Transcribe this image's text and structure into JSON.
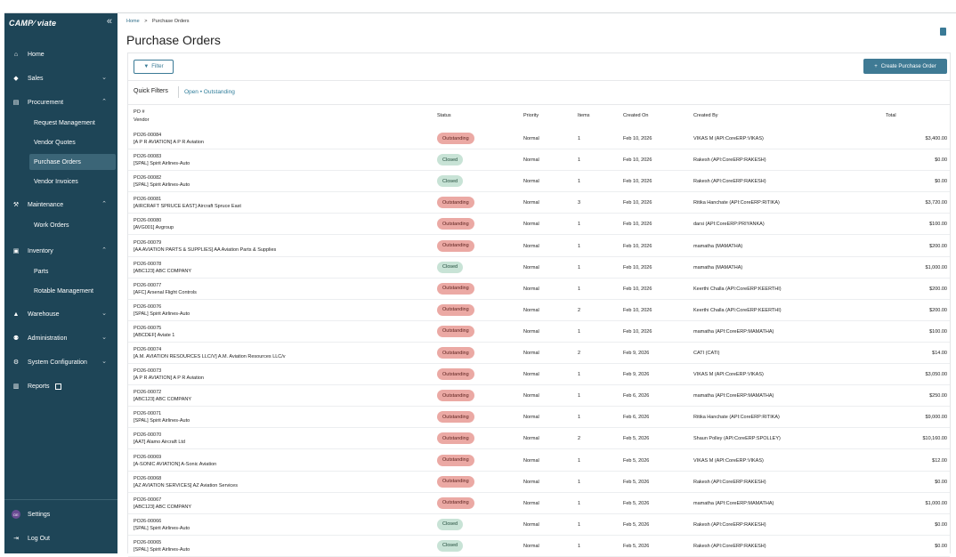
{
  "sidebar": {
    "logo": "CAMP∕ viate",
    "collapse": "«",
    "items": [
      {
        "label": "Home",
        "icon": "home-icon",
        "glyph": "⌂"
      },
      {
        "label": "Sales",
        "icon": "tag-icon",
        "glyph": "◆"
      },
      {
        "label": "Procurement",
        "icon": "cart-icon",
        "glyph": "▤"
      },
      {
        "label": "Maintenance",
        "icon": "tools-icon",
        "glyph": "⚒"
      },
      {
        "label": "Inventory",
        "icon": "inventory-icon",
        "glyph": "▣"
      },
      {
        "label": "Warehouse",
        "icon": "warehouse-icon",
        "glyph": "▲"
      },
      {
        "label": "Administration",
        "icon": "admin-icon",
        "glyph": "⚉"
      },
      {
        "label": "System Configuration",
        "icon": "gear-icon",
        "glyph": "⚙"
      },
      {
        "label": "Reports",
        "icon": "report-icon",
        "glyph": "▥"
      }
    ],
    "sub_items": {
      "procurement": [
        "Request Management",
        "Vendor Quotes",
        "Purchase Orders",
        "Vendor Invoices"
      ],
      "maintenance": [
        "Work Orders"
      ],
      "inventory": [
        "Parts",
        "Rotable Management"
      ]
    },
    "settings": {
      "label": "Settings",
      "avatar": "DE"
    },
    "logout": "Log Out"
  },
  "breadcrumb": {
    "home": "Home",
    "sep": ">",
    "current": "Purchase Orders"
  },
  "page_title": "Purchase Orders",
  "toolbar": {
    "filter": "Filter",
    "create": "Create Purchase Order"
  },
  "quick_filters": {
    "label": "Quick Filters",
    "value": "Open • Outstanding"
  },
  "table": {
    "headers": {
      "po": "PO #",
      "vendor": "Vendor",
      "status": "Status",
      "priority": "Priority",
      "items": "Items",
      "created_on": "Created On",
      "created_by": "Created By",
      "total": "Total"
    },
    "rows": [
      {
        "po": "PO26-00084",
        "vendor": "[A P R AVIATION] A P R Aviation",
        "status": "Outstanding",
        "priority": "Normal",
        "items": "1",
        "created_on": "Feb 10, 2026",
        "created_by": "VIKAS M (API:CoreERP:VIKAS)",
        "total": "$3,400.00"
      },
      {
        "po": "PO26-00083",
        "vendor": "[SPAL] Spirit Airlines-Auto",
        "status": "Closed",
        "priority": "Normal",
        "items": "1",
        "created_on": "Feb 10, 2026",
        "created_by": "Rakesh (API:CoreERP:RAKESH)",
        "total": "$0.00"
      },
      {
        "po": "PO26-00082",
        "vendor": "[SPAL] Spirit Airlines-Auto",
        "status": "Closed",
        "priority": "Normal",
        "items": "1",
        "created_on": "Feb 10, 2026",
        "created_by": "Rakesh (API:CoreERP:RAKESH)",
        "total": "$0.00"
      },
      {
        "po": "PO26-00081",
        "vendor": "[AIRCRAFT SPRUCE EAST] Aircraft Spruce East",
        "status": "Outstanding",
        "priority": "Normal",
        "items": "3",
        "created_on": "Feb 10, 2026",
        "created_by": "Ritika Hanchate (API:CoreERP:RITIKA)",
        "total": "$3,720.00"
      },
      {
        "po": "PO26-00080",
        "vendor": "[AVG001] Avgroup",
        "status": "Outstanding",
        "priority": "Normal",
        "items": "1",
        "created_on": "Feb 10, 2026",
        "created_by": "darsi (API:CoreERP:PRIYANKA)",
        "total": "$100.00"
      },
      {
        "po": "PO26-00079",
        "vendor": "[AA AVIATION PARTS & SUPPLIES] AA Aviation Parts & Supplies",
        "status": "Outstanding",
        "priority": "Normal",
        "items": "1",
        "created_on": "Feb 10, 2026",
        "created_by": "mamatha (MAMATHA)",
        "total": "$200.00"
      },
      {
        "po": "PO26-00078",
        "vendor": "[ABC123] ABC COMPANY",
        "status": "Closed",
        "priority": "Normal",
        "items": "1",
        "created_on": "Feb 10, 2026",
        "created_by": "mamatha (MAMATHA)",
        "total": "$1,000.00"
      },
      {
        "po": "PO26-00077",
        "vendor": "[AFC] Arsenal Flight Controls",
        "status": "Outstanding",
        "priority": "Normal",
        "items": "1",
        "created_on": "Feb 10, 2026",
        "created_by": "Keerthi Challa (API:CoreERP:KEERTHI)",
        "total": "$200.00"
      },
      {
        "po": "PO26-00076",
        "vendor": "[SPAL] Spirit Airlines-Auto",
        "status": "Outstanding",
        "priority": "Normal",
        "items": "2",
        "created_on": "Feb 10, 2026",
        "created_by": "Keerthi Challa (API:CoreERP:KEERTHI)",
        "total": "$200.00"
      },
      {
        "po": "PO26-00075",
        "vendor": "[ABCDEF] Aviate 1",
        "status": "Outstanding",
        "priority": "Normal",
        "items": "1",
        "created_on": "Feb 10, 2026",
        "created_by": "mamatha (API:CoreERP:MAMATHA)",
        "total": "$100.00"
      },
      {
        "po": "PO26-00074",
        "vendor": "[A.M. AVIATION RESOURCES LLC/V] A.M. Aviation Resources LLC/v",
        "status": "Outstanding",
        "priority": "Normal",
        "items": "2",
        "created_on": "Feb 9, 2026",
        "created_by": "CATI (CATI)",
        "total": "$14.00"
      },
      {
        "po": "PO26-00073",
        "vendor": "[A P R AVIATION] A P R Aviation",
        "status": "Outstanding",
        "priority": "Normal",
        "items": "1",
        "created_on": "Feb 9, 2026",
        "created_by": "VIKAS M (API:CoreERP:VIKAS)",
        "total": "$3,050.00"
      },
      {
        "po": "PO26-00072",
        "vendor": "[ABC123] ABC COMPANY",
        "status": "Outstanding",
        "priority": "Normal",
        "items": "1",
        "created_on": "Feb 6, 2026",
        "created_by": "mamatha (API:CoreERP:MAMATHA)",
        "total": "$250.00"
      },
      {
        "po": "PO26-00071",
        "vendor": "[SPAL] Spirit Airlines-Auto",
        "status": "Outstanding",
        "priority": "Normal",
        "items": "1",
        "created_on": "Feb 6, 2026",
        "created_by": "Ritika Hanchate (API:CoreERP:RITIKA)",
        "total": "$9,000.00"
      },
      {
        "po": "PO26-00070",
        "vendor": "[AAT] Alamo Aircraft Ltd",
        "status": "Outstanding",
        "priority": "Normal",
        "items": "2",
        "created_on": "Feb 5, 2026",
        "created_by": "Shaun Polley (API:CoreERP:SPOLLEY)",
        "total": "$10,160.00"
      },
      {
        "po": "PO26-00069",
        "vendor": "[A-SONIC AVIATION] A-Sonic Aviation",
        "status": "Outstanding",
        "priority": "Normal",
        "items": "1",
        "created_on": "Feb 5, 2026",
        "created_by": "VIKAS M (API:CoreERP:VIKAS)",
        "total": "$12.00"
      },
      {
        "po": "PO26-00068",
        "vendor": "[AZ AVIATION SERVICES] AZ Aviation Services",
        "status": "Outstanding",
        "priority": "Normal",
        "items": "1",
        "created_on": "Feb 5, 2026",
        "created_by": "Rakesh (API:CoreERP:RAKESH)",
        "total": "$0.00"
      },
      {
        "po": "PO26-00067",
        "vendor": "[ABC123] ABC COMPANY",
        "status": "Outstanding",
        "priority": "Normal",
        "items": "1",
        "created_on": "Feb 5, 2026",
        "created_by": "mamatha (API:CoreERP:MAMATHA)",
        "total": "$1,000.00"
      },
      {
        "po": "PO26-00066",
        "vendor": "[SPAL] Spirit Airlines-Auto",
        "status": "Closed",
        "priority": "Normal",
        "items": "1",
        "created_on": "Feb 5, 2026",
        "created_by": "Rakesh (API:CoreERP:RAKESH)",
        "total": "$0.00"
      },
      {
        "po": "PO26-00065",
        "vendor": "[SPAL] Spirit Airlines-Auto",
        "status": "Closed",
        "priority": "Normal",
        "items": "1",
        "created_on": "Feb 5, 2026",
        "created_by": "Rakesh (API:CoreERP:RAKESH)",
        "total": "$0.00"
      }
    ]
  },
  "colors": {
    "sidebar": "#1e4557",
    "accent": "#3f7a94",
    "outstanding": "#eba9a4",
    "closed": "#c8e3d6"
  }
}
